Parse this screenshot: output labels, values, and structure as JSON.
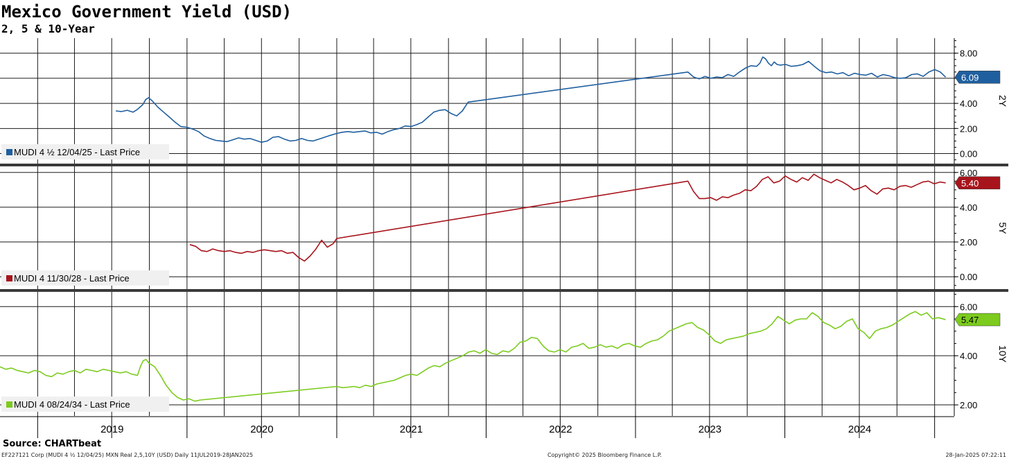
{
  "header": {
    "title": "Mexico Government Yield (USD)",
    "subtitle": "2, 5 & 10-Year"
  },
  "footer": {
    "source": "Source: CHARTbeat",
    "left": "EF227121 Corp (MUDI 4 ½ 12/04/25) MXN Real 2,5,10Y (USD)  Daily 11JUL2019-28JAN2025",
    "center": "Copyright© 2025 Bloomberg Finance L.P.",
    "right": "28-Jan-2025 07:22:11"
  },
  "chart_data": {
    "type": "line",
    "x_range": [
      "2018-10-01",
      "2025-02-18"
    ],
    "x_tick_labels": [
      "2019",
      "2020",
      "2021",
      "2022",
      "2023",
      "2024"
    ],
    "grid": true,
    "panels": [
      {
        "panel_label": "2Y",
        "ylim": [
          -0.8,
          9.2
        ],
        "yticks": [
          0,
          2,
          4,
          6,
          8
        ],
        "ytick_labels": [
          "0.00",
          "2.00",
          "4.00",
          "6.00",
          "8.00"
        ],
        "last_value_label": "6.09",
        "series": [
          {
            "name": "MUDI 4 ½ 12/04/25 - Last Price",
            "color": "#1f5f9f",
            "x": [
              "2019-07-11",
              "2019-07-25",
              "2019-08-08",
              "2019-08-22",
              "2019-09-01",
              "2019-09-08",
              "2019-09-15",
              "2019-09-22",
              "2019-09-29",
              "2019-10-08",
              "2019-10-22",
              "2019-11-05",
              "2019-11-19",
              "2019-12-03",
              "2019-12-17",
              "2019-12-31",
              "2020-01-15",
              "2020-01-29",
              "2020-02-12",
              "2020-02-26",
              "2020-03-11",
              "2020-03-25",
              "2020-04-08",
              "2020-04-22",
              "2020-05-06",
              "2020-05-20",
              "2020-06-03",
              "2020-06-17",
              "2020-07-01",
              "2020-07-15",
              "2020-07-29",
              "2020-08-12",
              "2020-08-26",
              "2020-09-09",
              "2020-09-23",
              "2020-10-07",
              "2020-10-21",
              "2020-11-04",
              "2020-11-18",
              "2020-12-02",
              "2020-12-16",
              "2020-12-31",
              "2021-01-14",
              "2021-01-28",
              "2021-02-11",
              "2021-02-25",
              "2021-03-11",
              "2021-03-25",
              "2021-04-08",
              "2021-04-22",
              "2021-05-06",
              "2021-05-20",
              "2021-06-03",
              "2021-06-17",
              "2021-07-01",
              "2021-07-15",
              "2021-07-29",
              "2021-08-12",
              "2021-08-26",
              "2021-09-09",
              "2021-09-23",
              "2021-10-07",
              "2021-10-21",
              "2021-11-04",
              "2021-11-18",
              "2023-05-09",
              "2023-05-23",
              "2023-06-06",
              "2023-06-20",
              "2023-07-04",
              "2023-07-18",
              "2023-08-01",
              "2023-08-15",
              "2023-08-29",
              "2023-09-12",
              "2023-09-26",
              "2023-10-10",
              "2023-10-24",
              "2023-11-01",
              "2023-11-08",
              "2023-11-15",
              "2023-11-22",
              "2023-11-29",
              "2023-12-06",
              "2023-12-13",
              "2023-12-20",
              "2024-01-03",
              "2024-01-17",
              "2024-01-31",
              "2024-02-14",
              "2024-02-28",
              "2024-03-13",
              "2024-03-27",
              "2024-04-10",
              "2024-04-24",
              "2024-05-08",
              "2024-05-22",
              "2024-06-05",
              "2024-06-19",
              "2024-07-03",
              "2024-07-17",
              "2024-07-31",
              "2024-08-14",
              "2024-08-28",
              "2024-09-11",
              "2024-09-25",
              "2024-10-09",
              "2024-10-23",
              "2024-11-06",
              "2024-11-20",
              "2024-12-04",
              "2024-12-18",
              "2025-01-01",
              "2025-01-15",
              "2025-01-28"
            ],
            "y": [
              3.4,
              3.35,
              3.45,
              3.3,
              3.5,
              3.7,
              3.9,
              4.3,
              4.45,
              4.2,
              3.7,
              3.3,
              2.9,
              2.5,
              2.15,
              2.1,
              1.95,
              1.75,
              1.4,
              1.2,
              1.05,
              1.0,
              0.95,
              1.1,
              1.25,
              1.15,
              1.2,
              1.05,
              0.9,
              1.0,
              1.3,
              1.35,
              1.15,
              1.0,
              1.05,
              1.2,
              1.05,
              1.0,
              1.15,
              1.3,
              1.45,
              1.6,
              1.7,
              1.75,
              1.7,
              1.75,
              1.8,
              1.65,
              1.7,
              1.55,
              1.75,
              1.9,
              2.0,
              2.2,
              2.15,
              2.3,
              2.5,
              2.9,
              3.3,
              3.45,
              3.5,
              3.2,
              3.0,
              3.4,
              4.1,
              6.5,
              6.1,
              5.95,
              6.15,
              6.0,
              6.1,
              6.05,
              6.3,
              6.15,
              6.5,
              6.8,
              7.0,
              6.95,
              7.2,
              7.7,
              7.55,
              7.2,
              7.0,
              7.3,
              7.1,
              7.05,
              7.1,
              6.95,
              7.0,
              7.1,
              7.35,
              6.95,
              6.6,
              6.45,
              6.5,
              6.35,
              6.45,
              6.2,
              6.4,
              6.3,
              6.25,
              6.4,
              6.1,
              6.3,
              6.2,
              6.05,
              6.0,
              6.05,
              6.3,
              6.35,
              6.15,
              6.5,
              6.7,
              6.5,
              6.09
            ]
          }
        ]
      },
      {
        "panel_label": "5Y",
        "ylim": [
          -0.75,
          6.35
        ],
        "yticks": [
          0,
          2,
          4,
          6
        ],
        "ytick_labels": [
          "0.00",
          "2.00",
          "4.00",
          "6.00"
        ],
        "last_value_label": "5.40",
        "series": [
          {
            "name": "MUDI 4 11/30/28 - Last Price",
            "color": "#a8141c",
            "x": [
              "2020-01-08",
              "2020-01-22",
              "2020-02-05",
              "2020-02-19",
              "2020-03-04",
              "2020-03-18",
              "2020-04-01",
              "2020-04-15",
              "2020-04-29",
              "2020-05-13",
              "2020-05-27",
              "2020-06-10",
              "2020-06-24",
              "2020-07-08",
              "2020-07-22",
              "2020-08-05",
              "2020-08-19",
              "2020-09-02",
              "2020-09-16",
              "2020-09-30",
              "2020-10-14",
              "2020-10-28",
              "2020-11-11",
              "2020-11-25",
              "2020-12-09",
              "2020-12-23",
              "2021-01-01",
              "2023-05-09",
              "2023-05-23",
              "2023-06-06",
              "2023-06-20",
              "2023-07-04",
              "2023-07-18",
              "2023-08-01",
              "2023-08-15",
              "2023-08-29",
              "2023-09-12",
              "2023-09-26",
              "2023-10-10",
              "2023-10-24",
              "2023-11-07",
              "2023-11-21",
              "2023-12-05",
              "2023-12-19",
              "2024-01-02",
              "2024-01-16",
              "2024-01-30",
              "2024-02-13",
              "2024-02-27",
              "2024-03-12",
              "2024-03-26",
              "2024-04-09",
              "2024-04-23",
              "2024-05-07",
              "2024-05-21",
              "2024-06-04",
              "2024-06-18",
              "2024-07-02",
              "2024-07-16",
              "2024-07-30",
              "2024-08-13",
              "2024-08-27",
              "2024-09-10",
              "2024-09-24",
              "2024-10-08",
              "2024-10-22",
              "2024-11-05",
              "2024-11-19",
              "2024-12-03",
              "2024-12-17",
              "2024-12-31",
              "2025-01-14",
              "2025-01-28"
            ],
            "y": [
              1.85,
              1.75,
              1.5,
              1.45,
              1.6,
              1.5,
              1.45,
              1.5,
              1.4,
              1.35,
              1.45,
              1.4,
              1.5,
              1.55,
              1.5,
              1.45,
              1.5,
              1.35,
              1.4,
              1.1,
              0.9,
              1.2,
              1.6,
              2.1,
              1.7,
              1.9,
              2.2,
              5.5,
              4.9,
              4.5,
              4.5,
              4.55,
              4.4,
              4.6,
              4.55,
              4.7,
              4.8,
              5.0,
              4.95,
              5.2,
              5.6,
              5.75,
              5.4,
              5.5,
              5.8,
              5.6,
              5.45,
              5.7,
              5.55,
              5.9,
              5.7,
              5.55,
              5.4,
              5.6,
              5.45,
              5.25,
              5.0,
              5.1,
              5.25,
              4.95,
              4.75,
              5.05,
              5.1,
              5.0,
              5.2,
              5.25,
              5.15,
              5.3,
              5.45,
              5.5,
              5.35,
              5.45,
              5.4
            ]
          }
        ]
      },
      {
        "panel_label": "10Y",
        "ylim": [
          1.55,
          6.6
        ],
        "yticks": [
          2,
          4,
          6
        ],
        "ytick_labels": [
          "2.00",
          "4.00",
          "6.00"
        ],
        "last_value_label": "5.47",
        "series": [
          {
            "name": "MUDI 4 08/24/34 - Last Price",
            "color": "#7ccb1e",
            "x": [
              "2018-10-01",
              "2018-10-15",
              "2018-10-29",
              "2018-11-12",
              "2018-11-26",
              "2018-12-10",
              "2018-12-24",
              "2019-01-07",
              "2019-01-21",
              "2019-02-04",
              "2019-02-18",
              "2019-03-04",
              "2019-03-18",
              "2019-04-01",
              "2019-04-15",
              "2019-04-29",
              "2019-05-13",
              "2019-05-27",
              "2019-06-10",
              "2019-06-24",
              "2019-07-08",
              "2019-07-22",
              "2019-08-05",
              "2019-08-19",
              "2019-09-02",
              "2019-09-09",
              "2019-09-16",
              "2019-09-23",
              "2019-09-30",
              "2019-10-14",
              "2019-10-28",
              "2019-11-11",
              "2019-11-25",
              "2019-12-09",
              "2019-12-23",
              "2020-01-06",
              "2020-01-20",
              "2020-02-03",
              "2021-01-01",
              "2021-01-15",
              "2021-01-29",
              "2021-02-12",
              "2021-02-26",
              "2021-03-12",
              "2021-03-26",
              "2021-04-09",
              "2021-04-23",
              "2021-05-07",
              "2021-05-21",
              "2021-06-04",
              "2021-06-18",
              "2021-07-02",
              "2021-07-16",
              "2021-07-30",
              "2021-08-13",
              "2021-08-27",
              "2021-09-10",
              "2021-09-24",
              "2021-10-08",
              "2021-10-22",
              "2021-11-05",
              "2021-11-19",
              "2021-12-03",
              "2021-12-17",
              "2021-12-31",
              "2022-01-14",
              "2022-01-28",
              "2022-02-11",
              "2022-02-25",
              "2022-03-11",
              "2022-03-25",
              "2022-04-08",
              "2022-04-22",
              "2022-05-06",
              "2022-05-20",
              "2022-06-03",
              "2022-06-17",
              "2022-07-01",
              "2022-07-15",
              "2022-07-29",
              "2022-08-12",
              "2022-08-26",
              "2022-09-09",
              "2022-09-23",
              "2022-10-07",
              "2022-10-21",
              "2022-11-04",
              "2022-11-18",
              "2022-12-02",
              "2022-12-16",
              "2022-12-30",
              "2023-01-13",
              "2023-01-27",
              "2023-02-10",
              "2023-02-24",
              "2023-03-10",
              "2023-03-24",
              "2023-04-07",
              "2023-04-21",
              "2023-05-05",
              "2023-05-19",
              "2023-06-02",
              "2023-06-16",
              "2023-06-30",
              "2023-07-14",
              "2023-07-28",
              "2023-08-11",
              "2023-08-25",
              "2023-09-08",
              "2023-09-22",
              "2023-10-06",
              "2023-10-20",
              "2023-11-03",
              "2023-11-17",
              "2023-12-01",
              "2023-12-15",
              "2023-12-29",
              "2024-01-12",
              "2024-01-26",
              "2024-02-09",
              "2024-02-23",
              "2024-03-08",
              "2024-03-22",
              "2024-04-05",
              "2024-04-19",
              "2024-05-03",
              "2024-05-17",
              "2024-05-31",
              "2024-06-14",
              "2024-06-28",
              "2024-07-12",
              "2024-07-26",
              "2024-08-09",
              "2024-08-23",
              "2024-09-06",
              "2024-09-20",
              "2024-10-04",
              "2024-10-18",
              "2024-11-01",
              "2024-11-15",
              "2024-11-29",
              "2024-12-13",
              "2024-12-27",
              "2025-01-10",
              "2025-01-28"
            ],
            "y": [
              3.55,
              3.45,
              3.5,
              3.4,
              3.35,
              3.3,
              3.4,
              3.35,
              3.2,
              3.15,
              3.3,
              3.25,
              3.35,
              3.4,
              3.3,
              3.45,
              3.4,
              3.35,
              3.45,
              3.4,
              3.35,
              3.3,
              3.35,
              3.25,
              3.2,
              3.55,
              3.8,
              3.85,
              3.7,
              3.55,
              3.2,
              2.8,
              2.5,
              2.3,
              2.2,
              2.25,
              2.15,
              2.2,
              2.75,
              2.7,
              2.72,
              2.75,
              2.7,
              2.8,
              2.75,
              2.85,
              2.9,
              2.95,
              3.0,
              3.1,
              3.2,
              3.25,
              3.2,
              3.35,
              3.5,
              3.6,
              3.55,
              3.7,
              3.8,
              3.9,
              4.0,
              4.15,
              4.2,
              4.1,
              4.25,
              4.1,
              4.05,
              4.2,
              4.15,
              4.3,
              4.55,
              4.6,
              4.75,
              4.7,
              4.4,
              4.2,
              4.15,
              4.25,
              4.15,
              4.35,
              4.4,
              4.5,
              4.3,
              4.35,
              4.45,
              4.35,
              4.4,
              4.3,
              4.45,
              4.5,
              4.4,
              4.35,
              4.5,
              4.6,
              4.65,
              4.8,
              5.0,
              5.1,
              5.2,
              5.3,
              5.35,
              5.15,
              5.05,
              4.85,
              4.6,
              4.5,
              4.65,
              4.7,
              4.75,
              4.8,
              4.9,
              4.95,
              5.0,
              5.1,
              5.3,
              5.6,
              5.45,
              5.3,
              5.45,
              5.5,
              5.5,
              5.75,
              5.6,
              5.35,
              5.25,
              5.1,
              5.2,
              5.4,
              5.5,
              5.1,
              4.95,
              4.7,
              5.0,
              5.1,
              5.15,
              5.25,
              5.4,
              5.55,
              5.7,
              5.8,
              5.65,
              5.75,
              5.5,
              5.55,
              5.47
            ]
          }
        ]
      }
    ]
  }
}
